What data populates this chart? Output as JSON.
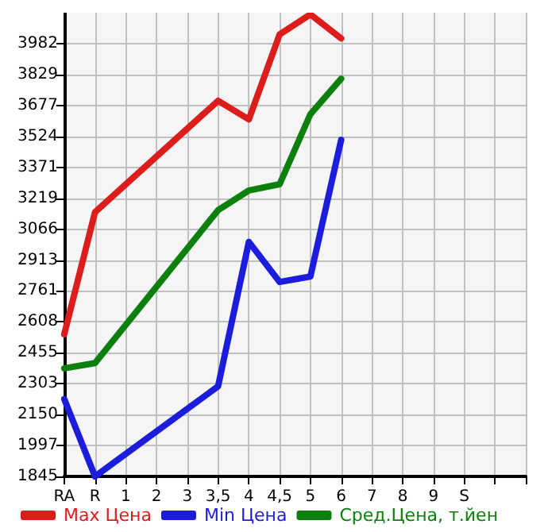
{
  "chart_data": {
    "type": "line",
    "categories": [
      "RA",
      "R",
      "1",
      "2",
      "3",
      "3,5",
      "4",
      "4,5",
      "5",
      "6",
      "7",
      "8",
      "9",
      "S",
      null,
      null
    ],
    "series": [
      {
        "name": "Max Цена",
        "color": "#dd1c1c",
        "values": [
          2547,
          3150,
          null,
          null,
          null,
          3700,
          3608,
          4028,
          4127,
          4008,
          null,
          null,
          null,
          null,
          null,
          null
        ]
      },
      {
        "name": "Min Цена",
        "color": "#1c1cdd",
        "values": [
          2227,
          1845,
          null,
          null,
          null,
          2290,
          3003,
          2805,
          2832,
          3507,
          null,
          null,
          null,
          null,
          null,
          null
        ]
      },
      {
        "name": "Сред.Цена, т.йен",
        "color": "#0c800c",
        "values": [
          2379,
          2405,
          null,
          null,
          null,
          3160,
          3257,
          3288,
          3634,
          3809,
          null,
          null,
          null,
          null,
          null,
          null
        ]
      }
    ],
    "ylim": [
      1845,
      4135
    ],
    "yticks": [
      1845,
      1997,
      2150,
      2303,
      2455,
      2608,
      2761,
      2913,
      3066,
      3219,
      3371,
      3524,
      3677,
      3829,
      3982
    ],
    "grid": true,
    "legend": "bottom",
    "marker": "none",
    "line_style": "solid"
  }
}
